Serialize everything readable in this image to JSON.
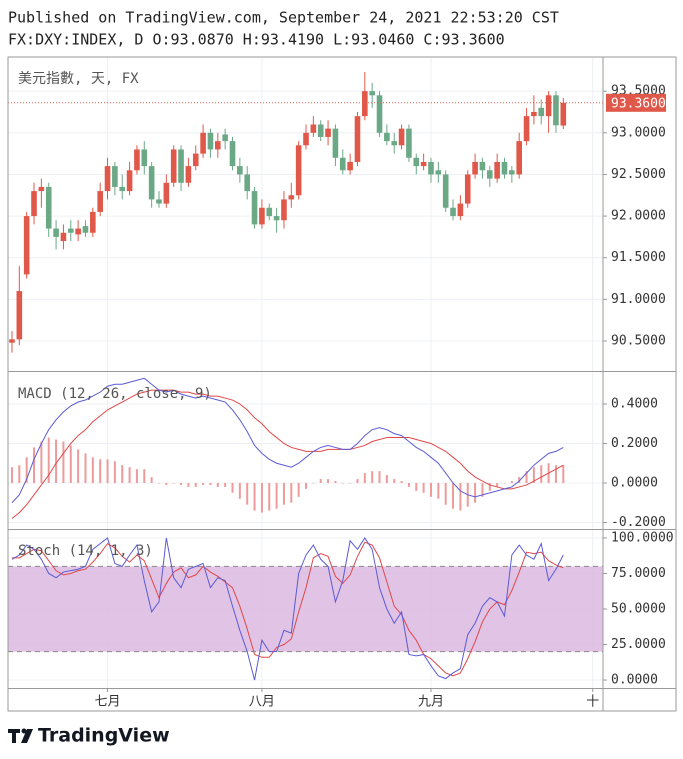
{
  "header": {
    "line1": "Published on TradingView.com, September 24, 2021 22:53:20 CST",
    "line2": "FX:DXY:INDEX, D O:93.0870 H:93.4190 L:93.0460 C:93.3600"
  },
  "footer": {
    "brand": "TradingView"
  },
  "chart_data": [
    {
      "type": "candlestick",
      "title": "美元指數, 天, FX",
      "up_color": "#e0584a",
      "down_color": "#6aa886",
      "xlim": [
        -0.54,
        80.4
      ],
      "xticks": [
        {
          "value": 13,
          "label": "七月"
        },
        {
          "value": 34,
          "label": "八月"
        },
        {
          "value": 57,
          "label": "九月"
        },
        {
          "value": 79,
          "label": "十"
        }
      ],
      "ylim": [
        90.14,
        93.91
      ],
      "yticks": [
        {
          "value": 90.5,
          "label": "90.5000"
        },
        {
          "value": 91,
          "label": "91.0000"
        },
        {
          "value": 91.5,
          "label": "91.5000"
        },
        {
          "value": 92,
          "label": "92.0000"
        },
        {
          "value": 92.5,
          "label": "92.5000"
        },
        {
          "value": 93,
          "label": "93.0000"
        },
        {
          "value": 93.5,
          "label": "93.5000"
        }
      ],
      "grid": true,
      "last_price": {
        "value": 93.36,
        "label": "93.3600"
      },
      "open": [
        90.48,
        90.52,
        91.3,
        92.0,
        92.3,
        92.35,
        91.85,
        91.7,
        91.85,
        91.78,
        91.88,
        91.8,
        92.05,
        92.3,
        92.6,
        92.35,
        92.3,
        92.55,
        92.8,
        92.6,
        92.2,
        92.15,
        92.4,
        92.8,
        92.4,
        92.6,
        92.75,
        93.0,
        92.8,
        92.98,
        92.9,
        92.6,
        92.5,
        92.3,
        91.9,
        92.1,
        92.0,
        91.95,
        92.2,
        92.25,
        92.85,
        93.0,
        93.1,
        92.95,
        93.05,
        92.7,
        92.55,
        92.65,
        93.2,
        93.5,
        93.45,
        93.0,
        92.9,
        92.85,
        93.05,
        92.7,
        92.6,
        92.65,
        92.55,
        92.5,
        92.1,
        92.0,
        92.15,
        92.5,
        92.65,
        92.55,
        92.45,
        92.65,
        92.55,
        92.5,
        92.9,
        93.2,
        93.3,
        93.2,
        93.45,
        93.087
      ],
      "high": [
        90.62,
        91.4,
        92.05,
        92.4,
        92.45,
        92.4,
        91.95,
        91.9,
        91.95,
        91.95,
        91.95,
        92.1,
        92.4,
        92.7,
        92.65,
        92.5,
        92.65,
        92.85,
        92.9,
        92.65,
        92.3,
        92.5,
        92.85,
        92.85,
        92.7,
        92.85,
        93.1,
        93.05,
        93.0,
        93.05,
        92.95,
        92.7,
        92.6,
        92.35,
        92.2,
        92.15,
        92.1,
        92.3,
        92.4,
        92.9,
        93.1,
        93.2,
        93.15,
        93.15,
        93.1,
        92.8,
        92.75,
        93.25,
        93.73,
        93.6,
        93.5,
        93.1,
        93.0,
        93.1,
        93.1,
        92.75,
        92.75,
        92.7,
        92.65,
        92.55,
        92.2,
        92.25,
        92.55,
        92.75,
        92.7,
        92.6,
        92.75,
        92.7,
        92.6,
        93.0,
        93.3,
        93.45,
        93.4,
        93.5,
        93.5,
        93.419
      ],
      "low": [
        90.36,
        90.45,
        91.25,
        91.9,
        92.1,
        91.75,
        91.6,
        91.6,
        91.7,
        91.7,
        91.75,
        91.75,
        92.0,
        92.2,
        92.25,
        92.2,
        92.25,
        92.5,
        92.5,
        92.1,
        92.1,
        92.1,
        92.35,
        92.3,
        92.35,
        92.55,
        92.7,
        92.7,
        92.7,
        92.8,
        92.55,
        92.4,
        92.2,
        91.85,
        91.85,
        91.95,
        91.8,
        91.85,
        92.1,
        92.2,
        92.8,
        92.95,
        92.9,
        92.85,
        92.6,
        92.5,
        92.5,
        92.6,
        93.15,
        93.3,
        92.95,
        92.85,
        92.75,
        92.8,
        92.65,
        92.5,
        92.55,
        92.4,
        92.4,
        92.05,
        91.95,
        91.95,
        92.1,
        92.45,
        92.45,
        92.35,
        92.4,
        92.45,
        92.4,
        92.45,
        92.85,
        93.1,
        93.1,
        93.0,
        93.0,
        93.046
      ],
      "close": [
        90.52,
        91.1,
        92.0,
        92.3,
        92.35,
        91.85,
        91.75,
        91.8,
        91.8,
        91.85,
        91.8,
        92.05,
        92.3,
        92.6,
        92.35,
        92.3,
        92.55,
        92.8,
        92.6,
        92.2,
        92.15,
        92.4,
        92.8,
        92.4,
        92.6,
        92.75,
        93.0,
        92.8,
        92.9,
        92.9,
        92.6,
        92.5,
        92.3,
        91.9,
        92.1,
        92.0,
        91.95,
        92.2,
        92.25,
        92.85,
        93.0,
        93.1,
        92.95,
        93.05,
        92.7,
        92.55,
        92.65,
        93.2,
        93.5,
        93.45,
        93.0,
        92.9,
        92.85,
        93.05,
        92.7,
        92.6,
        92.65,
        92.5,
        92.5,
        92.1,
        92.0,
        92.15,
        92.5,
        92.65,
        92.55,
        92.45,
        92.65,
        92.5,
        92.5,
        92.9,
        93.2,
        93.25,
        93.2,
        93.45,
        93.09,
        93.36
      ]
    },
    {
      "type": "macd",
      "title": "MACD (12, 26, close, 9)",
      "ylim": [
        -0.233,
        0.562
      ],
      "yticks": [
        {
          "value": -0.2,
          "label": "-0.2000"
        },
        {
          "value": 0,
          "label": "0.0000"
        },
        {
          "value": 0.2,
          "label": "0.2000"
        },
        {
          "value": 0.4,
          "label": "0.4000"
        }
      ],
      "grid": true,
      "histogram": {
        "color": "#ef9a9a",
        "values": [
          0.08,
          0.09,
          0.13,
          0.18,
          0.21,
          0.23,
          0.22,
          0.21,
          0.19,
          0.17,
          0.15,
          0.13,
          0.12,
          0.12,
          0.11,
          0.09,
          0.08,
          0.07,
          0.07,
          0.03,
          0,
          -0.01,
          0,
          -0.01,
          -0.02,
          -0.02,
          -0.01,
          -0.01,
          -0.02,
          -0.02,
          -0.05,
          -0.08,
          -0.11,
          -0.14,
          -0.15,
          -0.14,
          -0.13,
          -0.11,
          -0.1,
          -0.07,
          -0.03,
          0,
          0.02,
          0.02,
          0.01,
          0,
          0,
          0.02,
          0.05,
          0.06,
          0.06,
          0.04,
          0.02,
          0.01,
          -0.02,
          -0.04,
          -0.05,
          -0.07,
          -0.08,
          -0.11,
          -0.13,
          -0.14,
          -0.12,
          -0.1,
          -0.07,
          -0.04,
          -0.02,
          0,
          0.01,
          0.03,
          0.06,
          0.08,
          0.09,
          0.1,
          0.09,
          0.09
        ]
      },
      "macd": {
        "color": "#5b5bd6",
        "values": [
          -0.1,
          -0.06,
          0.02,
          0.12,
          0.2,
          0.27,
          0.32,
          0.36,
          0.39,
          0.41,
          0.42,
          0.44,
          0.46,
          0.49,
          0.5,
          0.5,
          0.51,
          0.52,
          0.53,
          0.5,
          0.47,
          0.46,
          0.47,
          0.45,
          0.44,
          0.43,
          0.44,
          0.43,
          0.42,
          0.41,
          0.37,
          0.32,
          0.26,
          0.19,
          0.15,
          0.12,
          0.1,
          0.09,
          0.08,
          0.1,
          0.13,
          0.16,
          0.18,
          0.19,
          0.18,
          0.17,
          0.17,
          0.2,
          0.24,
          0.27,
          0.28,
          0.27,
          0.25,
          0.24,
          0.21,
          0.18,
          0.16,
          0.13,
          0.1,
          0.05,
          0,
          -0.04,
          -0.06,
          -0.07,
          -0.06,
          -0.05,
          -0.04,
          -0.03,
          -0.02,
          0.01,
          0.05,
          0.09,
          0.12,
          0.15,
          0.16,
          0.18
        ]
      },
      "signal": {
        "color": "#e04848",
        "values": [
          -0.18,
          -0.15,
          -0.11,
          -0.06,
          -0.01,
          0.04,
          0.1,
          0.15,
          0.2,
          0.24,
          0.27,
          0.31,
          0.34,
          0.37,
          0.39,
          0.41,
          0.43,
          0.45,
          0.46,
          0.47,
          0.47,
          0.47,
          0.47,
          0.46,
          0.46,
          0.45,
          0.45,
          0.44,
          0.44,
          0.43,
          0.42,
          0.4,
          0.37,
          0.33,
          0.3,
          0.26,
          0.23,
          0.2,
          0.18,
          0.17,
          0.16,
          0.16,
          0.16,
          0.17,
          0.17,
          0.17,
          0.17,
          0.18,
          0.19,
          0.21,
          0.22,
          0.23,
          0.23,
          0.23,
          0.23,
          0.22,
          0.21,
          0.2,
          0.18,
          0.16,
          0.13,
          0.1,
          0.06,
          0.03,
          0.01,
          -0.01,
          -0.02,
          -0.03,
          -0.03,
          -0.02,
          -0.01,
          0.01,
          0.03,
          0.05,
          0.07,
          0.09
        ]
      }
    },
    {
      "type": "stoch",
      "title": "Stoch (14, 1, 3)",
      "ylim": [
        -5.6,
        106.3
      ],
      "yticks": [
        {
          "value": 0,
          "label": "0.0000"
        },
        {
          "value": 25,
          "label": "25.0000"
        },
        {
          "value": 50,
          "label": "50.0000"
        },
        {
          "value": 75,
          "label": "75.0000"
        },
        {
          "value": 100,
          "label": "100.0000"
        }
      ],
      "grid": true,
      "bands": [
        20,
        80
      ],
      "band_color": "#dbb9e0",
      "k": {
        "color": "#5b5bd6",
        "values": [
          85,
          88,
          95,
          92,
          85,
          75,
          72,
          76,
          77,
          78,
          80,
          92,
          96,
          100,
          82,
          80,
          88,
          95,
          70,
          48,
          55,
          100,
          72,
          65,
          78,
          80,
          82,
          65,
          72,
          70,
          52,
          35,
          20,
          0,
          28,
          20,
          20,
          35,
          33,
          75,
          88,
          95,
          85,
          80,
          55,
          70,
          98,
          92,
          100,
          92,
          65,
          50,
          40,
          48,
          18,
          17,
          18,
          10,
          3,
          1,
          5,
          8,
          32,
          40,
          52,
          58,
          55,
          45,
          88,
          95,
          88,
          85,
          96,
          70,
          78,
          88
        ]
      },
      "d": {
        "color": "#e04848",
        "values": [
          86,
          86,
          89,
          92,
          91,
          84,
          77,
          74,
          75,
          77,
          78,
          83,
          89,
          96,
          93,
          87,
          83,
          88,
          84,
          71,
          58,
          68,
          76,
          79,
          72,
          74,
          80,
          76,
          73,
          69,
          65,
          52,
          36,
          18,
          16,
          16,
          23,
          25,
          29,
          48,
          65,
          86,
          89,
          87,
          73,
          68,
          74,
          87,
          97,
          95,
          86,
          69,
          52,
          46,
          35,
          28,
          18,
          15,
          10,
          5,
          3,
          5,
          15,
          27,
          41,
          50,
          55,
          53,
          63,
          76,
          90,
          89,
          90,
          84,
          81,
          79
        ]
      }
    }
  ]
}
